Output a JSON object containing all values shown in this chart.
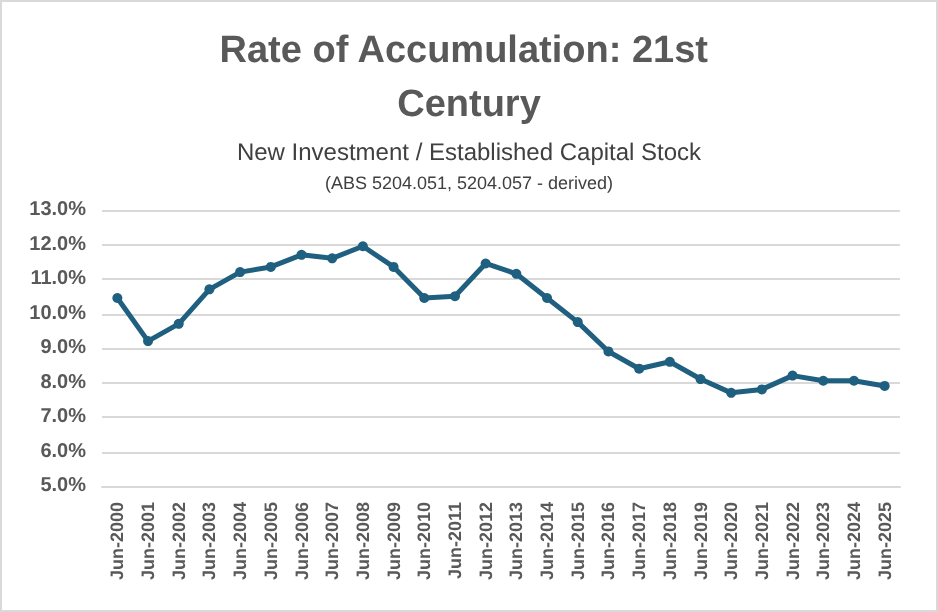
{
  "chart_data": {
    "type": "line",
    "title": "Rate of Accumulation: 21st Century",
    "subtitle": "New Investment / Established Capital Stock",
    "annotations": [
      "(ABS 5204.051, 5204.057 - derived)"
    ],
    "categories": [
      "Jun-2000",
      "Jun-2001",
      "Jun-2002",
      "Jun-2003",
      "Jun-2004",
      "Jun-2005",
      "Jun-2006",
      "Jun-2007",
      "Jun-2008",
      "Jun-2009",
      "Jun-2010",
      "Jun-2011",
      "Jun-2012",
      "Jun-2013",
      "Jun-2014",
      "Jun-2015",
      "Jun-2016",
      "Jun-2017",
      "Jun-2018",
      "Jun-2019",
      "Jun-2020",
      "Jun-2021",
      "Jun-2022",
      "Jun-2023",
      "Jun-2024",
      "Jun-2025"
    ],
    "series": [
      {
        "color": "#1f5f7f",
        "values": [
          10.45,
          9.2,
          9.7,
          10.7,
          11.2,
          11.35,
          11.7,
          11.6,
          11.95,
          11.35,
          10.45,
          10.5,
          11.45,
          11.15,
          10.45,
          9.75,
          8.9,
          8.4,
          8.6,
          8.1,
          7.7,
          7.8,
          8.2,
          8.05,
          8.05,
          7.9
        ]
      }
    ],
    "ylim": [
      5,
      13
    ],
    "yticks": [
      {
        "value": 5,
        "label": "5.0%"
      },
      {
        "value": 6,
        "label": "6.0%"
      },
      {
        "value": 7,
        "label": "7.0%"
      },
      {
        "value": 8,
        "label": "8.0%"
      },
      {
        "value": 9,
        "label": "9.0%"
      },
      {
        "value": 10,
        "label": "10.0%"
      },
      {
        "value": 11,
        "label": "11.0%"
      },
      {
        "value": 12,
        "label": "12.0%"
      },
      {
        "value": 13,
        "label": "13.0%"
      }
    ],
    "grid": "y",
    "marker": "circle",
    "line_style": "solid"
  }
}
